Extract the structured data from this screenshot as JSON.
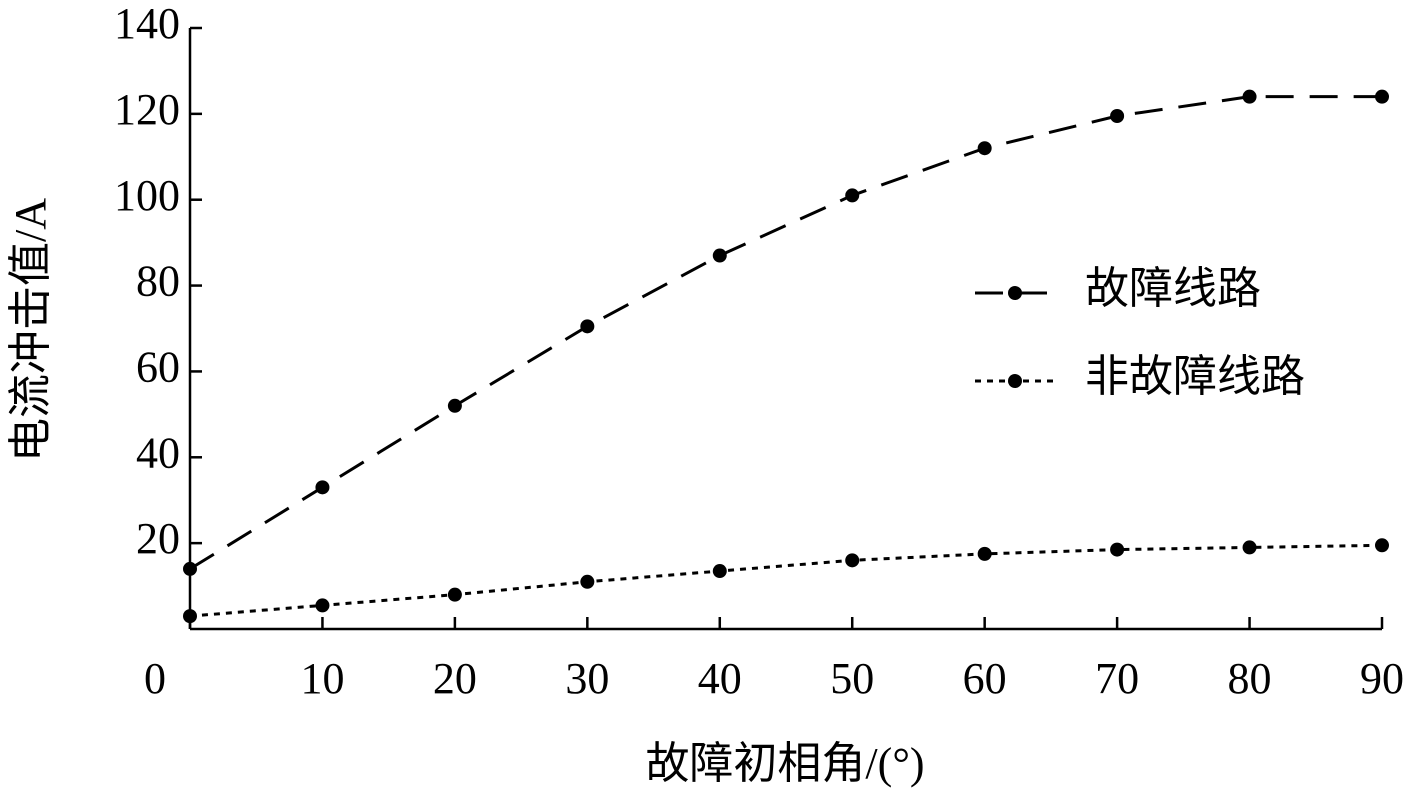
{
  "chart_data": {
    "type": "line",
    "x_label": "故障初相角/(°)",
    "y_label": "电流冲击值/A",
    "x": [
      0,
      10,
      20,
      30,
      40,
      50,
      60,
      70,
      80,
      90
    ],
    "series": [
      {
        "name": "故障线路",
        "color": "#000000",
        "line_style": "dashed",
        "values": [
          14,
          33,
          52,
          70.5,
          87,
          101,
          112,
          119.5,
          124,
          124
        ]
      },
      {
        "name": "非故障线路",
        "color": "#000000",
        "line_style": "dotted",
        "values": [
          3,
          5.5,
          8,
          11,
          13.5,
          16,
          17.5,
          18.5,
          19,
          19.5
        ]
      }
    ],
    "xlim": [
      0,
      90
    ],
    "ylim": [
      0,
      140
    ],
    "xticks": [
      0,
      10,
      20,
      30,
      40,
      50,
      60,
      70,
      80,
      90
    ],
    "yticks": [
      20,
      40,
      60,
      80,
      100,
      120,
      140
    ],
    "grid": false,
    "legend": "right"
  }
}
